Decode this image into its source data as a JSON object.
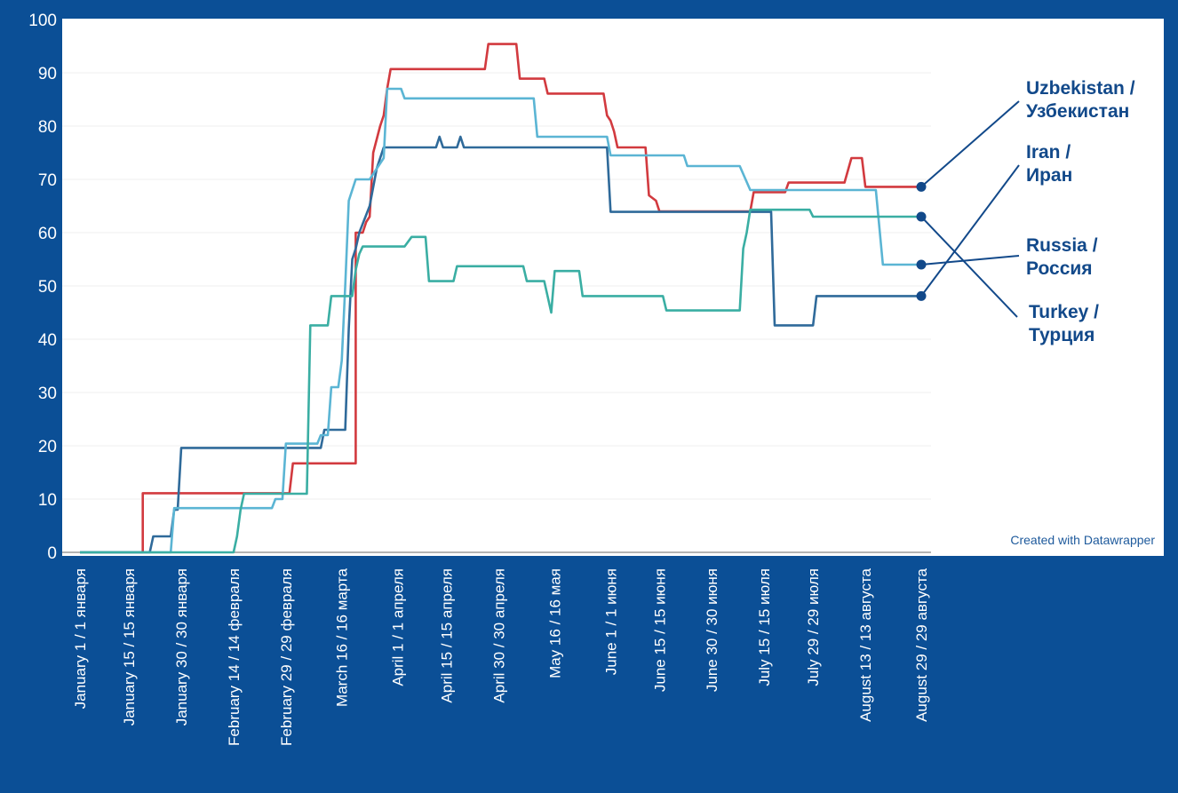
{
  "credit": "Created with Datawrapper",
  "chart_data": {
    "type": "line",
    "ylim": [
      0,
      100
    ],
    "yticks": [
      0,
      10,
      20,
      30,
      40,
      50,
      60,
      70,
      80,
      90,
      100
    ],
    "xlim": [
      1,
      242
    ],
    "xticks": [
      {
        "day": 1,
        "label": "January 1 / 1 января"
      },
      {
        "day": 15,
        "label": "January 15 / 15 января"
      },
      {
        "day": 30,
        "label": "January 30 / 30 января"
      },
      {
        "day": 45,
        "label": "February 14 / 14 февраля"
      },
      {
        "day": 60,
        "label": "February 29 / 29 февраля"
      },
      {
        "day": 76,
        "label": "March 16 / 16 марта"
      },
      {
        "day": 92,
        "label": "April 1 / 1 апреля"
      },
      {
        "day": 106,
        "label": "April 15 / 15 апреля"
      },
      {
        "day": 121,
        "label": "April 30 / 30 апреля"
      },
      {
        "day": 137,
        "label": "May 16 / 16 мая"
      },
      {
        "day": 153,
        "label": "June 1 / 1 июня"
      },
      {
        "day": 167,
        "label": "June 15 / 15 июня"
      },
      {
        "day": 182,
        "label": "June 30 / 30 июня"
      },
      {
        "day": 197,
        "label": "July 15 / 15 июля"
      },
      {
        "day": 211,
        "label": "July 29 / 29 июля"
      },
      {
        "day": 226,
        "label": "August 13 / 13 августа"
      },
      {
        "day": 242,
        "label": "August 29 / 29 августа"
      }
    ],
    "series": [
      {
        "name": "Uzbekistan / Узбекистан",
        "color": "#d23a3f",
        "points": [
          [
            1,
            0
          ],
          [
            19,
            0
          ],
          [
            19,
            11.1
          ],
          [
            61,
            11.1
          ],
          [
            62,
            16.7
          ],
          [
            71,
            16.7
          ],
          [
            72,
            16.7
          ],
          [
            80,
            16.7
          ],
          [
            80,
            60
          ],
          [
            82,
            60
          ],
          [
            83,
            62
          ],
          [
            84,
            63
          ],
          [
            85,
            75
          ],
          [
            87,
            80
          ],
          [
            88,
            82
          ],
          [
            89,
            87
          ],
          [
            90,
            90.7
          ],
          [
            105,
            90.7
          ],
          [
            112,
            90.7
          ],
          [
            117,
            90.7
          ],
          [
            118,
            95.4
          ],
          [
            126,
            95.4
          ],
          [
            127,
            88.9
          ],
          [
            134,
            88.9
          ],
          [
            135,
            86.1
          ],
          [
            144,
            86.1
          ],
          [
            151,
            86.1
          ],
          [
            152,
            82
          ],
          [
            153,
            81
          ],
          [
            154,
            79
          ],
          [
            155,
            76
          ],
          [
            163,
            76
          ],
          [
            164,
            67
          ],
          [
            166,
            66
          ],
          [
            167,
            64
          ],
          [
            183,
            64
          ],
          [
            185,
            64
          ],
          [
            193,
            64
          ],
          [
            194,
            67.6
          ],
          [
            203,
            67.6
          ],
          [
            204,
            69.4
          ],
          [
            218,
            69.4
          ],
          [
            220,
            69.4
          ],
          [
            222,
            74
          ],
          [
            225,
            74
          ],
          [
            226,
            68.6
          ],
          [
            242,
            68.6
          ]
        ]
      },
      {
        "name": "Iran / Иран",
        "color": "#2f6a9a",
        "points": [
          [
            1,
            0
          ],
          [
            21,
            0
          ],
          [
            22,
            3
          ],
          [
            26,
            3
          ],
          [
            27,
            3
          ],
          [
            28,
            8
          ],
          [
            29,
            8
          ],
          [
            30,
            19.6
          ],
          [
            70,
            19.6
          ],
          [
            71,
            23
          ],
          [
            77,
            23
          ],
          [
            78,
            42
          ],
          [
            79,
            55
          ],
          [
            80,
            57
          ],
          [
            81,
            60
          ],
          [
            84,
            65
          ],
          [
            86,
            72
          ],
          [
            88,
            76
          ],
          [
            103,
            76
          ],
          [
            104,
            78
          ],
          [
            105,
            76
          ],
          [
            109,
            76
          ],
          [
            110,
            78
          ],
          [
            111,
            76
          ],
          [
            123,
            76
          ],
          [
            152,
            76
          ],
          [
            153,
            63.9
          ],
          [
            163,
            63.9
          ],
          [
            183,
            63.9
          ],
          [
            193,
            63.9
          ],
          [
            199,
            63.9
          ],
          [
            200,
            42.6
          ],
          [
            211,
            42.6
          ],
          [
            212,
            48.1
          ],
          [
            225,
            48.1
          ],
          [
            242,
            48.1
          ]
        ]
      },
      {
        "name": "Russia / Россия",
        "color": "#5bb5d4",
        "points": [
          [
            1,
            0
          ],
          [
            27,
            0
          ],
          [
            28,
            8.3
          ],
          [
            56,
            8.3
          ],
          [
            57,
            10
          ],
          [
            59,
            10
          ],
          [
            60,
            20.4
          ],
          [
            69,
            20.4
          ],
          [
            70,
            22
          ],
          [
            72,
            22
          ],
          [
            73,
            31
          ],
          [
            75,
            31
          ],
          [
            76,
            36
          ],
          [
            77,
            50
          ],
          [
            78,
            66
          ],
          [
            79,
            68
          ],
          [
            80,
            70
          ],
          [
            84,
            70
          ],
          [
            86,
            72
          ],
          [
            88,
            74
          ],
          [
            89,
            87
          ],
          [
            93,
            87
          ],
          [
            94,
            85.2
          ],
          [
            128,
            85.2
          ],
          [
            131,
            85.2
          ],
          [
            132,
            78
          ],
          [
            141,
            78
          ],
          [
            142,
            78
          ],
          [
            152,
            78
          ],
          [
            153,
            74.5
          ],
          [
            160,
            74.5
          ],
          [
            174,
            74.5
          ],
          [
            175,
            72.5
          ],
          [
            185,
            72.5
          ],
          [
            190,
            72.5
          ],
          [
            193,
            68
          ],
          [
            227,
            68
          ],
          [
            229,
            68
          ],
          [
            231,
            54
          ],
          [
            242,
            54
          ]
        ]
      },
      {
        "name": "Turkey / Турция",
        "color": "#3aaea3",
        "points": [
          [
            1,
            0
          ],
          [
            45,
            0
          ],
          [
            46,
            3
          ],
          [
            47,
            8
          ],
          [
            48,
            11
          ],
          [
            66,
            11
          ],
          [
            67,
            42.6
          ],
          [
            72,
            42.6
          ],
          [
            73,
            48.1
          ],
          [
            79,
            48.1
          ],
          [
            80,
            53
          ],
          [
            81,
            56
          ],
          [
            82,
            57.4
          ],
          [
            94,
            57.4
          ],
          [
            96,
            59.2
          ],
          [
            100,
            59.2
          ],
          [
            101,
            50.9
          ],
          [
            108,
            50.9
          ],
          [
            109,
            53.7
          ],
          [
            121,
            53.7
          ],
          [
            128,
            53.7
          ],
          [
            129,
            50.9
          ],
          [
            134,
            50.9
          ],
          [
            135,
            48
          ],
          [
            136,
            45
          ],
          [
            137,
            52.8
          ],
          [
            144,
            52.8
          ],
          [
            145,
            48.1
          ],
          [
            160,
            48.1
          ],
          [
            168,
            48.1
          ],
          [
            169,
            45.4
          ],
          [
            190,
            45.4
          ],
          [
            191,
            57
          ],
          [
            192,
            60
          ],
          [
            193,
            64.3
          ],
          [
            210,
            64.3
          ],
          [
            211,
            63
          ],
          [
            224,
            63
          ],
          [
            242,
            63
          ]
        ]
      }
    ],
    "labels": [
      {
        "series": 0,
        "lines": [
          "Uzbekistan /",
          "Узбекистан"
        ]
      },
      {
        "series": 1,
        "lines": [
          "Iran /",
          "Иран"
        ]
      },
      {
        "series": 2,
        "lines": [
          "Russia /",
          "Россия"
        ]
      },
      {
        "series": 3,
        "lines": [
          "Turkey /",
          "Турция"
        ]
      }
    ]
  }
}
